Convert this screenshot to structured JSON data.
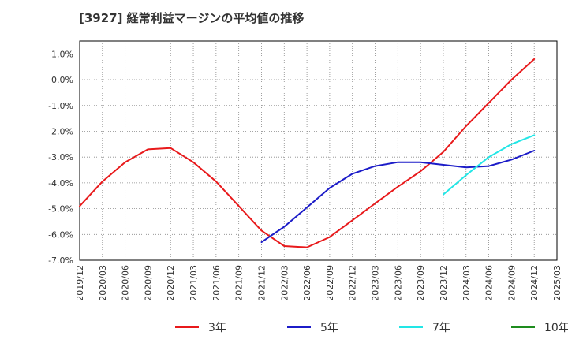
{
  "chart_data": {
    "type": "line",
    "title": "[3927]  経常利益マージンの平均値の推移",
    "xlabel": "",
    "ylabel": "",
    "ylim": [
      -7.0,
      1.5
    ],
    "grid": true,
    "legend_position": "bottom",
    "y_ticks": [
      {
        "value": 1.0,
        "label": "1.0%"
      },
      {
        "value": 0.0,
        "label": "0.0%"
      },
      {
        "value": -1.0,
        "label": "-1.0%"
      },
      {
        "value": -2.0,
        "label": "-2.0%"
      },
      {
        "value": -3.0,
        "label": "-3.0%"
      },
      {
        "value": -4.0,
        "label": "-4.0%"
      },
      {
        "value": -5.0,
        "label": "-5.0%"
      },
      {
        "value": -6.0,
        "label": "-6.0%"
      },
      {
        "value": -7.0,
        "label": "-7.0%"
      }
    ],
    "x_ticks": [
      "2019/12",
      "2020/03",
      "2020/06",
      "2020/09",
      "2020/12",
      "2021/03",
      "2021/06",
      "2021/09",
      "2021/12",
      "2022/03",
      "2022/06",
      "2022/09",
      "2022/12",
      "2023/03",
      "2023/06",
      "2023/09",
      "2023/12",
      "2024/03",
      "2024/06",
      "2024/09",
      "2024/12",
      "2025/03"
    ],
    "x": [
      "2019/12",
      "2020/03",
      "2020/06",
      "2020/09",
      "2020/12",
      "2021/03",
      "2021/06",
      "2021/09",
      "2021/12",
      "2022/03",
      "2022/06",
      "2022/09",
      "2022/12",
      "2023/03",
      "2023/06",
      "2023/09",
      "2023/12",
      "2024/03",
      "2024/06",
      "2024/09",
      "2024/12"
    ],
    "series": [
      {
        "name": "3年",
        "color": "#e8191b",
        "values": [
          -4.9,
          -3.95,
          -3.2,
          -2.7,
          -2.65,
          -3.2,
          -3.95,
          -4.9,
          -5.85,
          -6.45,
          -6.5,
          -6.1,
          -5.45,
          -4.8,
          -4.15,
          -3.55,
          -2.8,
          -1.8,
          -0.9,
          0.0,
          0.8
        ]
      },
      {
        "name": "5年",
        "color": "#1c1cc8",
        "values": [
          null,
          null,
          null,
          null,
          null,
          null,
          null,
          null,
          -6.3,
          -5.7,
          -4.95,
          -4.2,
          -3.65,
          -3.35,
          -3.2,
          -3.2,
          -3.3,
          -3.4,
          -3.35,
          -3.1,
          -2.75
        ]
      },
      {
        "name": "7年",
        "color": "#22e6e6",
        "values": [
          null,
          null,
          null,
          null,
          null,
          null,
          null,
          null,
          null,
          null,
          null,
          null,
          null,
          null,
          null,
          null,
          -4.45,
          -3.7,
          -3.0,
          -2.5,
          -2.15
        ]
      },
      {
        "name": "10年",
        "color": "#1e8c1e",
        "values": [
          null,
          null,
          null,
          null,
          null,
          null,
          null,
          null,
          null,
          null,
          null,
          null,
          null,
          null,
          null,
          null,
          null,
          null,
          null,
          null,
          null
        ]
      }
    ]
  }
}
